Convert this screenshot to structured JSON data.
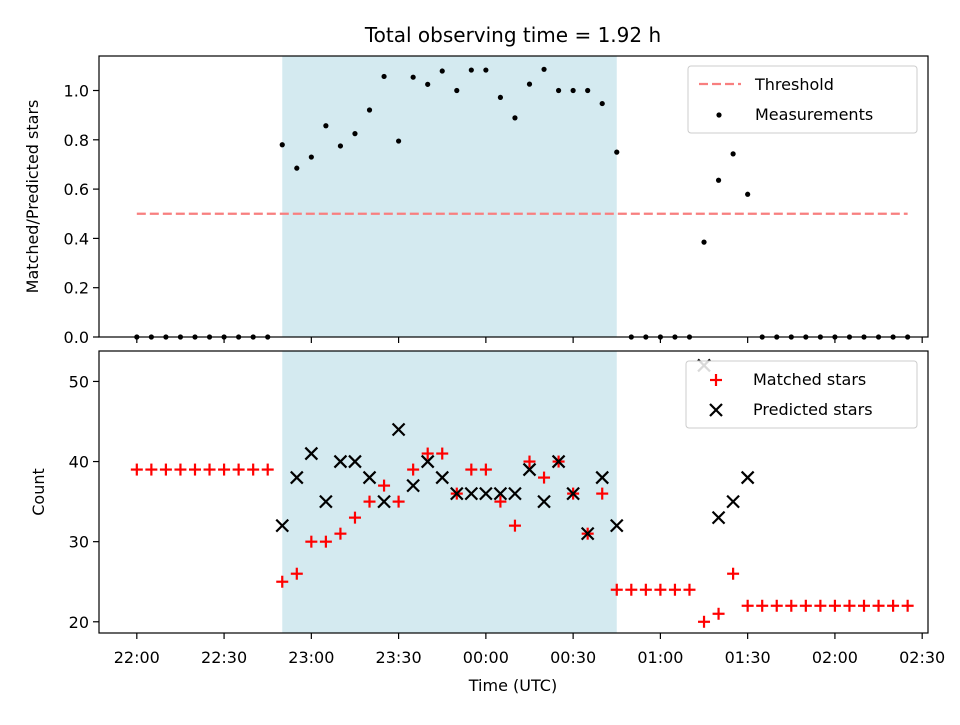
{
  "chart_data": [
    {
      "type": "scatter",
      "title": "Total observing time = 1.92 h",
      "xlabel": "",
      "ylabel": "Matched/Predicted stars",
      "ylim": [
        0.0,
        1.14
      ],
      "yticks": [
        "0.0",
        "0.2",
        "0.4",
        "0.6",
        "0.8",
        "1.0"
      ],
      "shaded_interval": [
        "22:50",
        "00:45"
      ],
      "shade_color": "#d4eaf0",
      "threshold": {
        "name": "Threshold",
        "value": 0.5,
        "x_range": [
          "22:00",
          "02:25"
        ],
        "color": "#f87f7f"
      },
      "series": [
        {
          "name": "Measurements",
          "marker": "dot",
          "color": "#000000",
          "points": [
            [
              "22:00",
              0.0
            ],
            [
              "22:05",
              0.0
            ],
            [
              "22:10",
              0.0
            ],
            [
              "22:15",
              0.0
            ],
            [
              "22:20",
              0.0
            ],
            [
              "22:25",
              0.0
            ],
            [
              "22:30",
              0.0
            ],
            [
              "22:35",
              0.0
            ],
            [
              "22:40",
              0.0
            ],
            [
              "22:45",
              0.0
            ],
            [
              "22:50",
              0.78
            ],
            [
              "22:55",
              0.685
            ],
            [
              "23:00",
              0.73
            ],
            [
              "23:05",
              0.857
            ],
            [
              "23:10",
              0.775
            ],
            [
              "23:15",
              0.825
            ],
            [
              "23:20",
              0.921
            ],
            [
              "23:25",
              1.057
            ],
            [
              "23:30",
              0.795
            ],
            [
              "23:35",
              1.054
            ],
            [
              "23:40",
              1.025
            ],
            [
              "23:45",
              1.079
            ],
            [
              "23:50",
              1.0
            ],
            [
              "23:55",
              1.083
            ],
            [
              "00:00",
              1.083
            ],
            [
              "00:05",
              0.972
            ],
            [
              "00:10",
              0.889
            ],
            [
              "00:15",
              1.026
            ],
            [
              "00:20",
              1.086
            ],
            [
              "00:25",
              1.0
            ],
            [
              "00:30",
              1.0
            ],
            [
              "00:35",
              1.0
            ],
            [
              "00:40",
              0.947
            ],
            [
              "00:45",
              0.75
            ],
            [
              "00:50",
              0.0
            ],
            [
              "00:55",
              0.0
            ],
            [
              "01:00",
              0.0
            ],
            [
              "01:05",
              0.0
            ],
            [
              "01:10",
              0.0
            ],
            [
              "01:15",
              0.385
            ],
            [
              "01:20",
              0.636
            ],
            [
              "01:25",
              0.743
            ],
            [
              "01:30",
              0.579
            ],
            [
              "01:35",
              0.0
            ],
            [
              "01:40",
              0.0
            ],
            [
              "01:45",
              0.0
            ],
            [
              "01:50",
              0.0
            ],
            [
              "01:55",
              0.0
            ],
            [
              "02:00",
              0.0
            ],
            [
              "02:05",
              0.0
            ],
            [
              "02:10",
              0.0
            ],
            [
              "02:15",
              0.0
            ],
            [
              "02:20",
              0.0
            ],
            [
              "02:25",
              0.0
            ]
          ]
        }
      ],
      "legend": {
        "placement": "top-right",
        "entries": [
          "Threshold",
          "Measurements"
        ]
      }
    },
    {
      "type": "scatter",
      "title": "",
      "xlabel": "Time (UTC)",
      "ylabel": "Count",
      "ylim": [
        18.6,
        53.8
      ],
      "yticks": [
        "20",
        "30",
        "40",
        "50"
      ],
      "xlim": [
        "21:47",
        "02:32"
      ],
      "xticks": [
        "22:00",
        "22:30",
        "23:00",
        "23:30",
        "00:00",
        "00:30",
        "01:00",
        "01:30",
        "02:00",
        "02:30"
      ],
      "shaded_interval": [
        "22:50",
        "00:45"
      ],
      "shade_color": "#d4eaf0",
      "series": [
        {
          "name": "Matched stars",
          "marker": "plus",
          "color": "#ff0000",
          "points": [
            [
              "22:00",
              39
            ],
            [
              "22:05",
              39
            ],
            [
              "22:10",
              39
            ],
            [
              "22:15",
              39
            ],
            [
              "22:20",
              39
            ],
            [
              "22:25",
              39
            ],
            [
              "22:30",
              39
            ],
            [
              "22:35",
              39
            ],
            [
              "22:40",
              39
            ],
            [
              "22:45",
              39
            ],
            [
              "22:50",
              25
            ],
            [
              "22:55",
              26
            ],
            [
              "23:00",
              30
            ],
            [
              "23:05",
              30
            ],
            [
              "23:10",
              31
            ],
            [
              "23:15",
              33
            ],
            [
              "23:20",
              35
            ],
            [
              "23:25",
              37
            ],
            [
              "23:30",
              35
            ],
            [
              "23:35",
              39
            ],
            [
              "23:40",
              41
            ],
            [
              "23:45",
              41
            ],
            [
              "23:50",
              36
            ],
            [
              "23:55",
              39
            ],
            [
              "00:00",
              39
            ],
            [
              "00:05",
              35
            ],
            [
              "00:10",
              32
            ],
            [
              "00:15",
              40
            ],
            [
              "00:20",
              38
            ],
            [
              "00:25",
              40
            ],
            [
              "00:30",
              36
            ],
            [
              "00:35",
              31
            ],
            [
              "00:40",
              36
            ],
            [
              "00:45",
              24
            ],
            [
              "00:50",
              24
            ],
            [
              "00:55",
              24
            ],
            [
              "01:00",
              24
            ],
            [
              "01:05",
              24
            ],
            [
              "01:10",
              24
            ],
            [
              "01:15",
              20
            ],
            [
              "01:20",
              21
            ],
            [
              "01:25",
              26
            ],
            [
              "01:30",
              22
            ],
            [
              "01:35",
              22
            ],
            [
              "01:40",
              22
            ],
            [
              "01:45",
              22
            ],
            [
              "01:50",
              22
            ],
            [
              "01:55",
              22
            ],
            [
              "02:00",
              22
            ],
            [
              "02:05",
              22
            ],
            [
              "02:10",
              22
            ],
            [
              "02:15",
              22
            ],
            [
              "02:20",
              22
            ],
            [
              "02:25",
              22
            ]
          ]
        },
        {
          "name": "Predicted stars",
          "marker": "cross",
          "color": "#000000",
          "points": [
            [
              "22:50",
              32
            ],
            [
              "22:55",
              38
            ],
            [
              "23:00",
              41
            ],
            [
              "23:05",
              35
            ],
            [
              "23:10",
              40
            ],
            [
              "23:15",
              40
            ],
            [
              "23:20",
              38
            ],
            [
              "23:25",
              35
            ],
            [
              "23:30",
              44
            ],
            [
              "23:35",
              37
            ],
            [
              "23:40",
              40
            ],
            [
              "23:45",
              38
            ],
            [
              "23:50",
              36
            ],
            [
              "23:55",
              36
            ],
            [
              "00:00",
              36
            ],
            [
              "00:05",
              36
            ],
            [
              "00:10",
              36
            ],
            [
              "00:15",
              39
            ],
            [
              "00:20",
              35
            ],
            [
              "00:25",
              40
            ],
            [
              "00:30",
              36
            ],
            [
              "00:35",
              31
            ],
            [
              "00:40",
              38
            ],
            [
              "00:45",
              32
            ],
            [
              "01:15",
              52
            ],
            [
              "01:20",
              33
            ],
            [
              "01:25",
              35
            ],
            [
              "01:30",
              38
            ]
          ]
        }
      ],
      "legend": {
        "placement": "top-right",
        "entries": [
          "Matched stars",
          "Predicted stars"
        ]
      }
    }
  ]
}
